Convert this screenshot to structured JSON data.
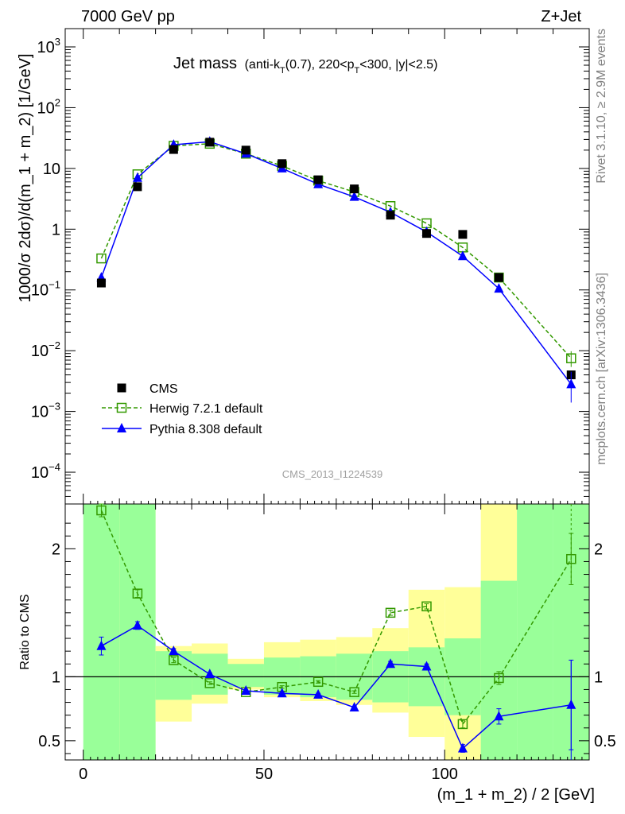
{
  "header": {
    "left": "7000 GeV pp",
    "right": "Z+Jet",
    "watermark": "CMS_2013_I1224539",
    "side_top": "Rivet 3.1.10, ≥ 2.9M events",
    "side_bottom": "mcplots.cern.ch [arXiv:1306.3436]"
  },
  "title": {
    "main": "Jet mass",
    "cuts_prefix": "(anti-k",
    "cuts_sub1": "T",
    "cuts_mid": "(0.7), 220<p",
    "cuts_sub2": "T",
    "cuts_suffix": "<300, |y|<2.5)"
  },
  "chart_data": [
    {
      "type": "line",
      "panel": "main",
      "ylabel": "1000/σ 2dσ)/d(m_1 + m_2) [1/GeV]",
      "yscale": "log",
      "ylim": [
        3e-05,
        2000
      ],
      "xlim": [
        -5,
        140
      ],
      "y_ticks": [
        {
          "v": 0.0001,
          "b": "10",
          "e": "−4"
        },
        {
          "v": 0.001,
          "b": "10",
          "e": "−3"
        },
        {
          "v": 0.01,
          "b": "10",
          "e": "−2"
        },
        {
          "v": 0.1,
          "b": "10",
          "e": "−1"
        },
        {
          "v": 1,
          "b": "1",
          "e": ""
        },
        {
          "v": 10,
          "b": "10",
          "e": ""
        },
        {
          "v": 100,
          "b": "10",
          "e": "2"
        },
        {
          "v": 1000,
          "b": "10",
          "e": "3"
        }
      ],
      "legend_position": "bottom-left",
      "series": [
        {
          "name": "CMS",
          "color": "#000000",
          "marker": "square-filled",
          "x": [
            5,
            15,
            25,
            35,
            45,
            55,
            65,
            75,
            85,
            95,
            105,
            115,
            135
          ],
          "y": [
            0.13,
            5.0,
            20.5,
            27.0,
            20.0,
            12.0,
            6.5,
            4.6,
            1.7,
            0.85,
            0.82,
            0.16,
            0.004
          ]
        },
        {
          "name": "Herwig 7.2.1 default",
          "color": "#339900",
          "marker": "square-open",
          "dash": true,
          "x": [
            5,
            15,
            25,
            35,
            45,
            55,
            65,
            75,
            85,
            95,
            105,
            115,
            135
          ],
          "y": [
            0.33,
            8.0,
            23.5,
            25.5,
            17.5,
            11.0,
            6.3,
            4.1,
            2.4,
            1.25,
            0.5,
            0.16,
            0.0075
          ]
        },
        {
          "name": "Pythia 8.308 default",
          "color": "#0000ff",
          "marker": "triangle-filled",
          "x": [
            5,
            15,
            25,
            35,
            45,
            55,
            65,
            75,
            85,
            95,
            105,
            115,
            135
          ],
          "y": [
            0.16,
            7.0,
            24.5,
            27.5,
            17.5,
            10.0,
            5.5,
            3.4,
            1.9,
            0.9,
            0.36,
            0.105,
            0.0028
          ]
        }
      ]
    },
    {
      "type": "line",
      "panel": "ratio",
      "xlabel": "(m_1 + m_2) / 2 [GeV]",
      "ylabel": "Ratio to CMS",
      "ylim": [
        0.35,
        2.35
      ],
      "xlim": [
        -5,
        140
      ],
      "x_ticks": [
        0,
        50,
        100
      ],
      "y_ticks": [
        0.5,
        1,
        2
      ],
      "bands": {
        "x_edges": [
          0,
          10,
          20,
          30,
          40,
          50,
          60,
          70,
          80,
          90,
          100,
          110,
          120,
          130,
          140
        ],
        "stat_lo": [
          null,
          0.35,
          0.82,
          0.86,
          0.92,
          0.86,
          0.84,
          0.82,
          0.8,
          0.77,
          0.7,
          0.35,
          0.35,
          null,
          null
        ],
        "stat_hi": [
          null,
          2.35,
          1.2,
          1.18,
          1.1,
          1.15,
          1.16,
          1.18,
          1.2,
          1.23,
          1.3,
          1.75,
          2.35,
          null,
          null
        ],
        "total_lo": [
          null,
          0.35,
          0.65,
          0.79,
          0.9,
          0.84,
          0.81,
          0.78,
          0.72,
          0.53,
          0.35,
          0.35,
          0.35,
          null,
          null
        ],
        "total_hi": [
          null,
          2.35,
          1.24,
          1.26,
          1.14,
          1.27,
          1.29,
          1.31,
          1.38,
          1.68,
          1.7,
          2.35,
          2.35,
          null,
          null
        ],
        "full_bins": [
          0,
          12,
          13
        ]
      },
      "series": [
        {
          "name": "Herwig 7.2.1 default",
          "color": "#339900",
          "x": [
            5,
            15,
            25,
            35,
            45,
            55,
            65,
            75,
            85,
            95,
            105,
            115,
            135
          ],
          "y": [
            2.3,
            1.65,
            1.13,
            0.95,
            0.88,
            0.92,
            0.96,
            0.88,
            1.5,
            1.55,
            0.63,
            0.99,
            1.92
          ],
          "err": [
            0.05,
            0.03,
            0.02,
            0.01,
            0.01,
            0.01,
            0.01,
            0.01,
            0.02,
            0.02,
            0.03,
            0.05,
            0.2
          ]
        },
        {
          "name": "Pythia 8.308 default",
          "color": "#0000ff",
          "x": [
            5,
            15,
            25,
            35,
            45,
            55,
            65,
            75,
            85,
            95,
            105,
            115,
            135
          ],
          "y": [
            1.24,
            1.4,
            1.2,
            1.02,
            0.89,
            0.87,
            0.86,
            0.76,
            1.1,
            1.08,
            0.44,
            0.69,
            0.78
          ],
          "err": [
            0.07,
            0.03,
            0.02,
            0.01,
            0.01,
            0.01,
            0.01,
            0.01,
            0.02,
            0.02,
            0.03,
            0.06,
            0.35
          ]
        }
      ]
    }
  ]
}
